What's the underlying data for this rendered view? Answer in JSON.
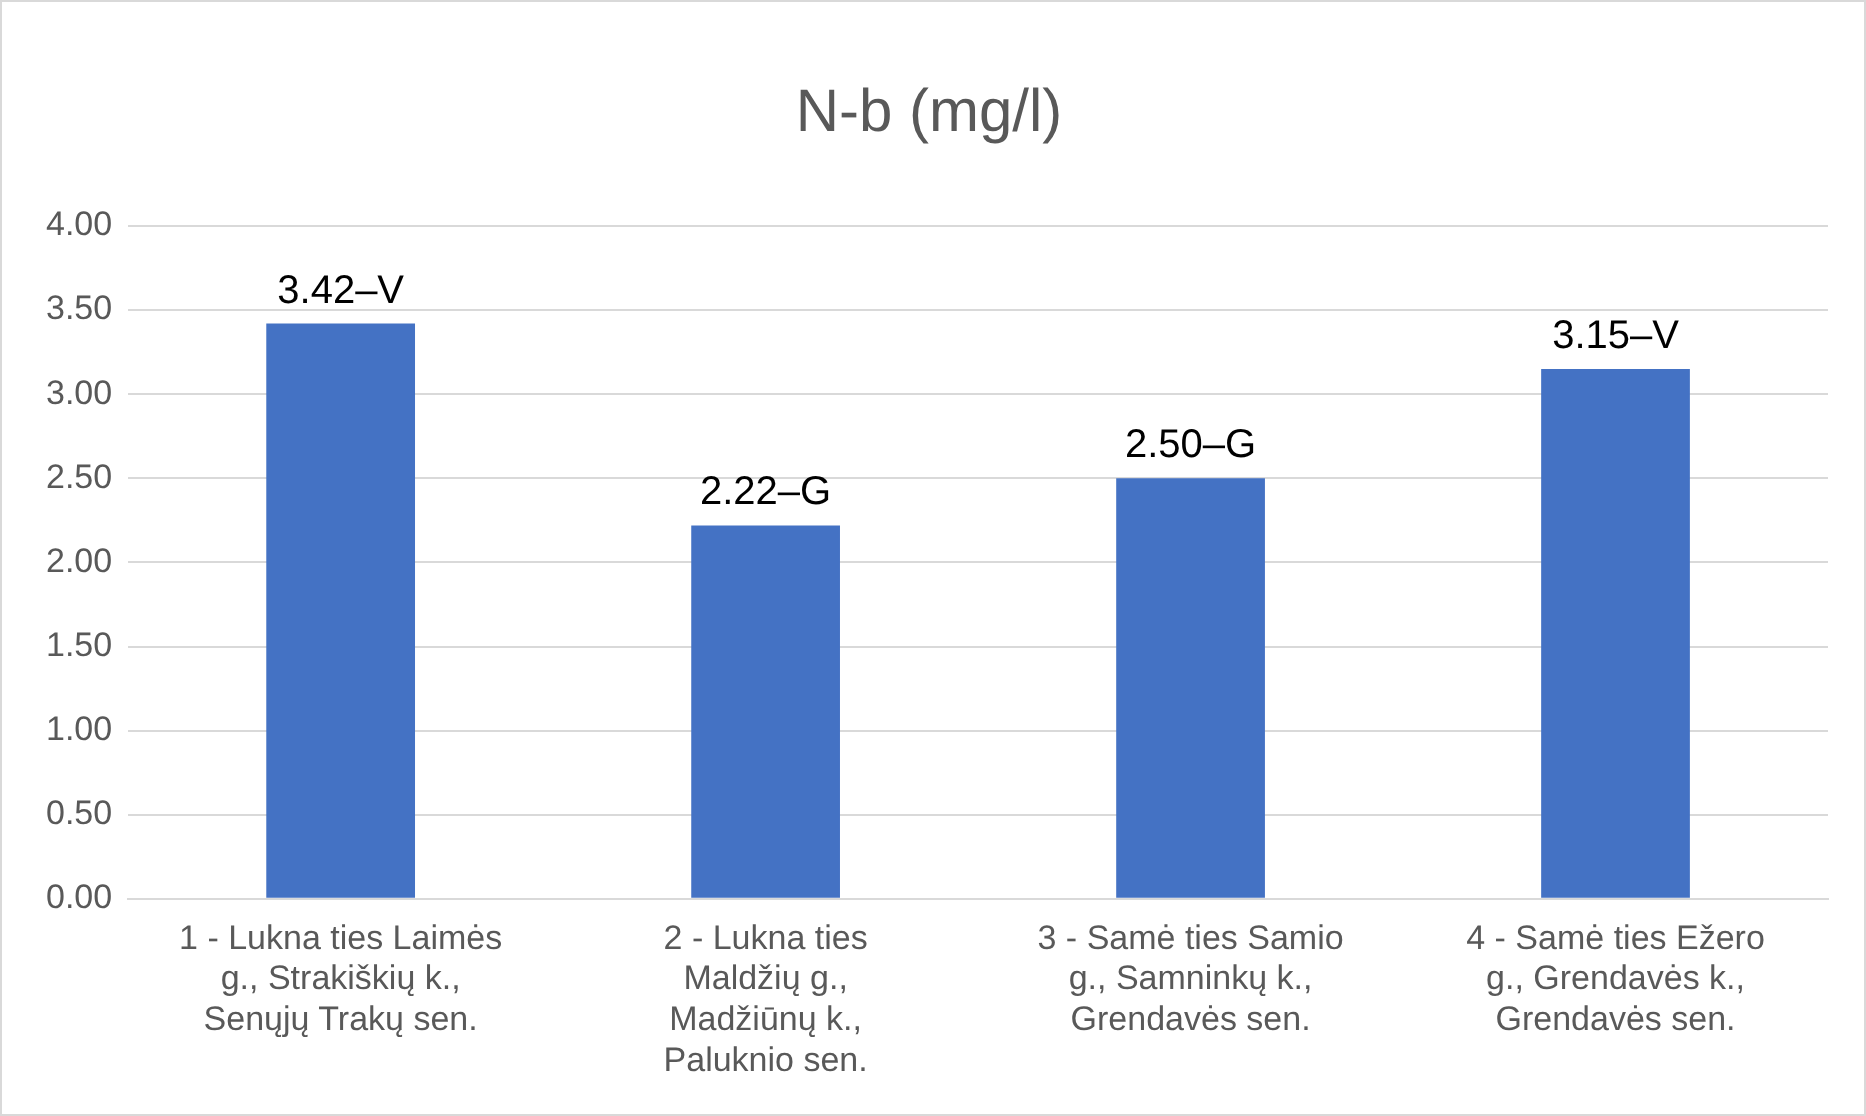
{
  "chart_data": {
    "type": "bar",
    "title": "N-b (mg/l)",
    "categories": [
      "1 - Lukna ties Laimės\ng., Strakiškių k.,\nSenųjų Trakų sen.",
      "2 - Lukna ties\nMaldžių g.,\nMadžiūnų k.,\nPaluknio sen.",
      "3 - Samė ties Samio\ng., Samninkų k.,\nGrendavės sen.",
      "4 - Samė ties Ežero\ng., Grendavės k.,\nGrendavės sen."
    ],
    "values": [
      3.42,
      2.22,
      2.5,
      3.15
    ],
    "value_labels": [
      "3.42–V",
      "2.22–G",
      "2.50–G",
      "3.15–V"
    ],
    "color": "#4472c4",
    "ylim": [
      0,
      4
    ],
    "yticks": [
      {
        "value": 0,
        "label": "0.00"
      },
      {
        "value": 0.5,
        "label": "0.50"
      },
      {
        "value": 1,
        "label": "1.00"
      },
      {
        "value": 1.5,
        "label": "1.50"
      },
      {
        "value": 2,
        "label": "2.00"
      },
      {
        "value": 2.5,
        "label": "2.50"
      },
      {
        "value": 3,
        "label": "3.00"
      },
      {
        "value": 3.5,
        "label": "3.50"
      },
      {
        "value": 4,
        "label": "4.00"
      }
    ],
    "grid": "y",
    "legend": false
  }
}
